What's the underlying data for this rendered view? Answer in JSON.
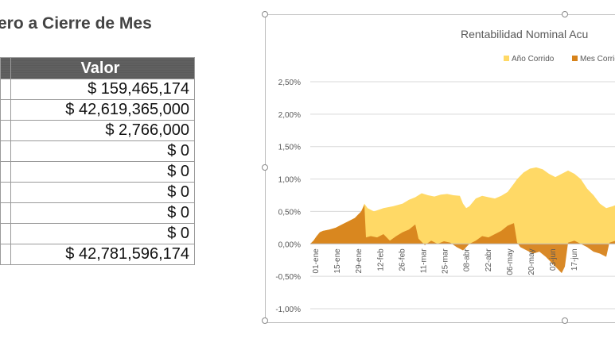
{
  "heading": "ero a Cierre de Mes",
  "table": {
    "header": "Valor",
    "rows": [
      "$ 159,465,174",
      "$ 42,619,365,000",
      "$ 2,766,000",
      "$ 0",
      "$ 0",
      "$ 0",
      "$ 0",
      "$ 0",
      "$ 42,781,596,174"
    ]
  },
  "chart_data": {
    "type": "area",
    "title": "Rentabilidad Nominal Acu",
    "legend_position": "top-right",
    "grid": true,
    "ylim": [
      -1.0,
      2.5
    ],
    "y_ticks": [
      "2,50%",
      "2,00%",
      "1,50%",
      "1,00%",
      "0,50%",
      "0,00%",
      "-0,50%",
      "-1,00%"
    ],
    "x_ticks": [
      "01-ene",
      "15-ene",
      "29-ene",
      "12-feb",
      "26-feb",
      "11-mar",
      "25-mar",
      "08-abr",
      "22-abr",
      "06-may",
      "20-may",
      "03-jun",
      "17-jun"
    ],
    "series": [
      {
        "name": "Año Corrido",
        "color": "#FFD966",
        "points": [
          [
            0,
            0.0
          ],
          [
            2,
            0.05
          ],
          [
            4,
            0.12
          ],
          [
            6,
            0.18
          ],
          [
            8,
            0.2
          ],
          [
            12,
            0.22
          ],
          [
            16,
            0.25
          ],
          [
            20,
            0.3
          ],
          [
            24,
            0.35
          ],
          [
            28,
            0.4
          ],
          [
            32,
            0.5
          ],
          [
            34,
            0.62
          ],
          [
            36,
            0.55
          ],
          [
            40,
            0.5
          ],
          [
            46,
            0.55
          ],
          [
            52,
            0.58
          ],
          [
            58,
            0.62
          ],
          [
            62,
            0.68
          ],
          [
            66,
            0.72
          ],
          [
            70,
            0.78
          ],
          [
            74,
            0.75
          ],
          [
            78,
            0.73
          ],
          [
            82,
            0.76
          ],
          [
            86,
            0.77
          ],
          [
            90,
            0.75
          ],
          [
            94,
            0.74
          ],
          [
            96,
            0.62
          ],
          [
            98,
            0.55
          ],
          [
            100,
            0.58
          ],
          [
            104,
            0.7
          ],
          [
            108,
            0.74
          ],
          [
            112,
            0.72
          ],
          [
            116,
            0.7
          ],
          [
            120,
            0.74
          ],
          [
            124,
            0.8
          ],
          [
            128,
            0.93
          ],
          [
            130,
            1.0
          ],
          [
            134,
            1.1
          ],
          [
            138,
            1.16
          ],
          [
            142,
            1.18
          ],
          [
            146,
            1.15
          ],
          [
            150,
            1.08
          ],
          [
            154,
            1.03
          ],
          [
            158,
            1.08
          ],
          [
            162,
            1.13
          ],
          [
            166,
            1.08
          ],
          [
            170,
            1.0
          ],
          [
            174,
            0.85
          ],
          [
            178,
            0.75
          ],
          [
            182,
            0.62
          ],
          [
            186,
            0.55
          ],
          [
            190,
            0.58
          ],
          [
            194,
            0.62
          ],
          [
            196,
            0.7
          ],
          [
            198,
            0.95
          ],
          [
            200,
            1.12
          ],
          [
            202,
            1.1
          ]
        ]
      },
      {
        "name": "Mes Corrido",
        "color": "#D7831B",
        "points": [
          [
            0,
            0.0
          ],
          [
            2,
            0.05
          ],
          [
            4,
            0.12
          ],
          [
            6,
            0.18
          ],
          [
            8,
            0.2
          ],
          [
            12,
            0.22
          ],
          [
            16,
            0.25
          ],
          [
            20,
            0.3
          ],
          [
            24,
            0.35
          ],
          [
            28,
            0.4
          ],
          [
            32,
            0.5
          ],
          [
            34,
            0.6
          ],
          [
            35,
            0.1
          ],
          [
            38,
            0.12
          ],
          [
            42,
            0.1
          ],
          [
            46,
            0.15
          ],
          [
            50,
            0.05
          ],
          [
            54,
            0.12
          ],
          [
            58,
            0.18
          ],
          [
            62,
            0.22
          ],
          [
            66,
            0.3
          ],
          [
            68,
            0.08
          ],
          [
            72,
            -0.02
          ],
          [
            76,
            0.05
          ],
          [
            80,
            0.0
          ],
          [
            84,
            0.04
          ],
          [
            88,
            0.02
          ],
          [
            92,
            -0.05
          ],
          [
            96,
            -0.1
          ],
          [
            98,
            -0.05
          ],
          [
            100,
            0.0
          ],
          [
            104,
            0.05
          ],
          [
            108,
            0.12
          ],
          [
            112,
            0.1
          ],
          [
            116,
            0.15
          ],
          [
            120,
            0.2
          ],
          [
            124,
            0.28
          ],
          [
            128,
            0.32
          ],
          [
            130,
            0.02
          ],
          [
            132,
            -0.05
          ],
          [
            136,
            -0.1
          ],
          [
            140,
            -0.15
          ],
          [
            144,
            -0.12
          ],
          [
            148,
            -0.2
          ],
          [
            152,
            -0.3
          ],
          [
            156,
            -0.4
          ],
          [
            158,
            -0.45
          ],
          [
            160,
            -0.35
          ],
          [
            162,
            0.02
          ],
          [
            166,
            0.05
          ],
          [
            170,
            0.0
          ],
          [
            174,
            -0.05
          ],
          [
            178,
            -0.12
          ],
          [
            182,
            -0.15
          ],
          [
            186,
            -0.2
          ],
          [
            188,
            0.02
          ],
          [
            192,
            0.05
          ],
          [
            196,
            0.1
          ],
          [
            198,
            0.2
          ],
          [
            200,
            0.3
          ],
          [
            202,
            0.35
          ]
        ]
      }
    ]
  }
}
